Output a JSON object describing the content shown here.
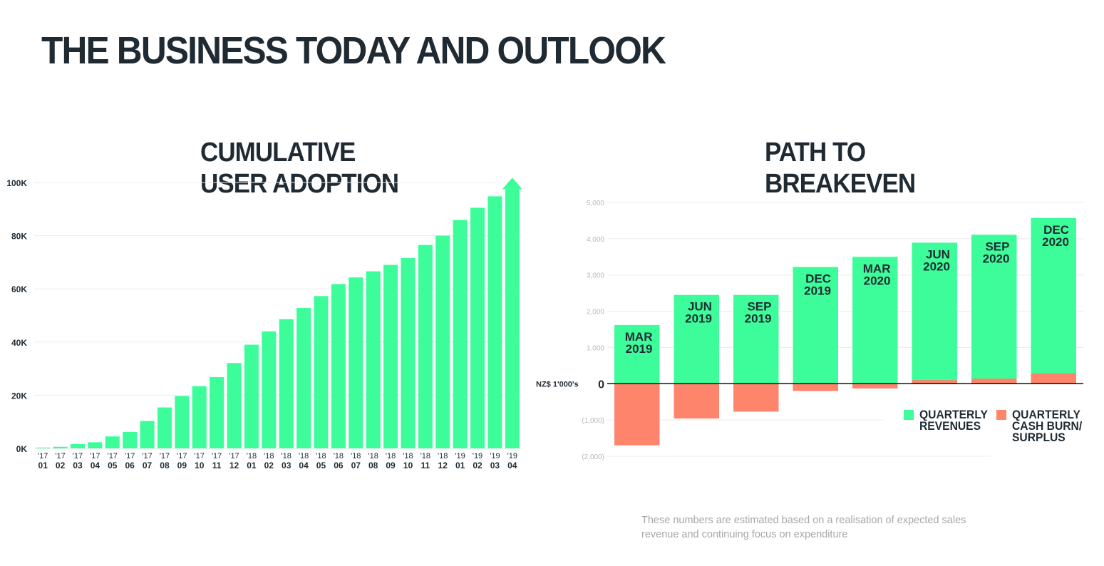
{
  "page": {
    "title": "THE BUSINESS TODAY AND OUTLOOK"
  },
  "footnote": "These numbers are estimated based on a realisation of expected sales revenue and continuing focus on expenditure",
  "colors": {
    "green": "#3dfd9a",
    "salmon": "#fe846b",
    "text": "#1f2a33",
    "grid": "#ececec"
  },
  "chart_data": [
    {
      "type": "bar",
      "title_lines": [
        "CUMULATIVE",
        "USER ADOPTION"
      ],
      "ylim": [
        0,
        100000
      ],
      "y_ticks": [
        0,
        20000,
        40000,
        60000,
        80000,
        100000
      ],
      "y_tick_labels": [
        "0K",
        "20K",
        "40K",
        "60K",
        "80K",
        "100K"
      ],
      "grid": true,
      "categories": [
        "'17 01",
        "'17 02",
        "'17 03",
        "'17 04",
        "'17 05",
        "'17 06",
        "'17 07",
        "'17 08",
        "'17 09",
        "'17 10",
        "'17 11",
        "'17 12",
        "'18 01",
        "'18 02",
        "'18 03",
        "'18 04",
        "'18 05",
        "'18 06",
        "'18 07",
        "'18 08",
        "'18 09",
        "'18 10",
        "'18 11",
        "'18 12",
        "'19 01",
        "'19 02",
        "'19 03",
        "'19 04"
      ],
      "tick_top": [
        "'17",
        "'17",
        "'17",
        "'17",
        "'17",
        "'17",
        "'17",
        "'17",
        "'17",
        "'17",
        "'17",
        "'17",
        "'18",
        "'18",
        "'18",
        "'18",
        "'18",
        "'18",
        "'18",
        "'18",
        "'18",
        "'18",
        "'18",
        "'18",
        "'19",
        "'19",
        "'19",
        "'19"
      ],
      "tick_bottom": [
        "01",
        "02",
        "03",
        "04",
        "05",
        "06",
        "07",
        "08",
        "09",
        "10",
        "11",
        "12",
        "01",
        "02",
        "03",
        "04",
        "05",
        "06",
        "07",
        "08",
        "09",
        "10",
        "11",
        "12",
        "01",
        "02",
        "03",
        "04"
      ],
      "values": [
        300,
        600,
        1600,
        2300,
        4500,
        6200,
        10300,
        15400,
        19700,
        23400,
        26800,
        32100,
        39000,
        44000,
        48600,
        52800,
        57300,
        61800,
        64300,
        66600,
        69000,
        71600,
        76500,
        80000,
        85900,
        90500,
        94800,
        97500
      ],
      "last_bar_arrow": true
    },
    {
      "type": "bar",
      "stacked": true,
      "title_lines": [
        "PATH TO",
        "BREAKEVEN"
      ],
      "ylabel": "NZ$ 1'000's",
      "ylim": [
        -2000,
        5000
      ],
      "y_ticks": [
        -2000,
        -1000,
        0,
        1000,
        2000,
        3000,
        4000,
        5000
      ],
      "y_tick_labels": [
        "(2,000)",
        "(1,000)",
        "0",
        "1,000",
        "2,000",
        "3,000",
        "4,000",
        "5,000"
      ],
      "grid": true,
      "legend_position": "bottom-right",
      "categories": [
        "MAR 2019",
        "JUN 2019",
        "SEP 2019",
        "DEC 2019",
        "MAR 2020",
        "JUN 2020",
        "SEP 2020",
        "DEC 2020"
      ],
      "bar_labels": [
        [
          "MAR",
          "2019"
        ],
        [
          "JUN",
          "2019"
        ],
        [
          "SEP",
          "2019"
        ],
        [
          "DEC",
          "2019"
        ],
        [
          "MAR",
          "2020"
        ],
        [
          "JUN",
          "2020"
        ],
        [
          "SEP",
          "2020"
        ],
        [
          "DEC",
          "2020"
        ]
      ],
      "series": [
        {
          "name": "QUARTERLY REVENUES",
          "legend_label": "QUARTERLY\nREVENUES",
          "values": [
            1620,
            2450,
            2450,
            3220,
            3500,
            3890,
            4110,
            4570
          ]
        },
        {
          "name": "QUARTERLY CASH BURN/ SURPLUS",
          "legend_label": "QUARTERLY\nCASH BURN/\nSURPLUS",
          "values": [
            -1700,
            -960,
            -770,
            -200,
            -130,
            100,
            140,
            290
          ]
        }
      ]
    }
  ]
}
